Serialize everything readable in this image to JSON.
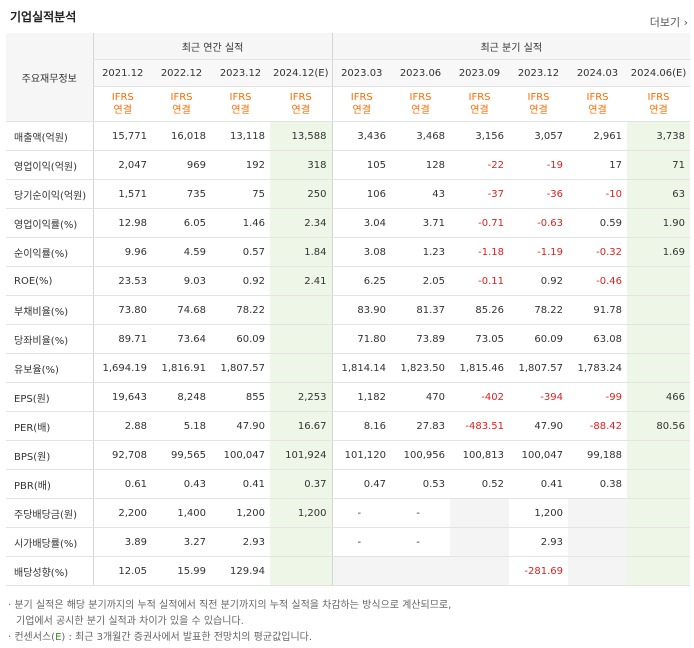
{
  "header": {
    "title": "기업실적분석",
    "more_label": "더보기"
  },
  "table": {
    "row_header": "주요재무정보",
    "group_annual": "최근 연간 실적",
    "group_quarterly": "최근 분기 실적",
    "annual_periods": [
      "2021.12",
      "2022.12",
      "2023.12",
      "2024.12(E)"
    ],
    "quarterly_periods": [
      "2023.03",
      "2023.06",
      "2023.09",
      "2023.12",
      "2024.03",
      "2024.06(E)"
    ],
    "ifrs_top": "IFRS",
    "ifrs_bottom": "연결",
    "rows": [
      {
        "label": "매출액(억원)",
        "values": [
          "15,771",
          "16,018",
          "13,118",
          "13,588",
          "3,436",
          "3,468",
          "3,156",
          "3,057",
          "2,961",
          "3,738"
        ]
      },
      {
        "label": "영업이익(억원)",
        "values": [
          "2,047",
          "969",
          "192",
          "318",
          "105",
          "128",
          "-22",
          "-19",
          "17",
          "71"
        ]
      },
      {
        "label": "당기순이익(억원)",
        "values": [
          "1,571",
          "735",
          "75",
          "250",
          "106",
          "43",
          "-37",
          "-36",
          "-10",
          "63"
        ]
      },
      {
        "label": "영업이익률(%)",
        "values": [
          "12.98",
          "6.05",
          "1.46",
          "2.34",
          "3.04",
          "3.71",
          "-0.71",
          "-0.63",
          "0.59",
          "1.90"
        ]
      },
      {
        "label": "순이익률(%)",
        "values": [
          "9.96",
          "4.59",
          "0.57",
          "1.84",
          "3.08",
          "1.23",
          "-1.18",
          "-1.19",
          "-0.32",
          "1.69"
        ]
      },
      {
        "label": "ROE(%)",
        "values": [
          "23.53",
          "9.03",
          "0.92",
          "2.41",
          "6.25",
          "2.05",
          "-0.11",
          "0.92",
          "-0.46",
          ""
        ]
      },
      {
        "label": "부채비율(%)",
        "values": [
          "73.80",
          "74.68",
          "78.22",
          "",
          "83.90",
          "81.37",
          "85.26",
          "78.22",
          "91.78",
          ""
        ]
      },
      {
        "label": "당좌비율(%)",
        "values": [
          "89.71",
          "73.64",
          "60.09",
          "",
          "71.80",
          "73.89",
          "73.05",
          "60.09",
          "63.08",
          ""
        ]
      },
      {
        "label": "유보율(%)",
        "values": [
          "1,694.19",
          "1,816.91",
          "1,807.57",
          "",
          "1,814.14",
          "1,823.50",
          "1,815.46",
          "1,807.57",
          "1,783.24",
          ""
        ]
      },
      {
        "label": "EPS(원)",
        "values": [
          "19,643",
          "8,248",
          "855",
          "2,253",
          "1,182",
          "470",
          "-402",
          "-394",
          "-99",
          "466"
        ]
      },
      {
        "label": "PER(배)",
        "values": [
          "2.88",
          "5.18",
          "47.90",
          "16.67",
          "8.16",
          "27.83",
          "-483.51",
          "47.90",
          "-88.42",
          "80.56"
        ]
      },
      {
        "label": "BPS(원)",
        "values": [
          "92,708",
          "99,565",
          "100,047",
          "101,924",
          "101,120",
          "100,956",
          "100,813",
          "100,047",
          "99,188",
          ""
        ]
      },
      {
        "label": "PBR(배)",
        "values": [
          "0.61",
          "0.43",
          "0.41",
          "0.37",
          "0.47",
          "0.53",
          "0.52",
          "0.41",
          "0.38",
          ""
        ]
      },
      {
        "label": "주당배당금(원)",
        "values": [
          "2,200",
          "1,400",
          "1,200",
          "1,200",
          "-",
          "-",
          "",
          "1,200",
          "",
          ""
        ]
      },
      {
        "label": "시가배당률(%)",
        "values": [
          "3.89",
          "3.27",
          "2.93",
          "",
          "-",
          "-",
          "",
          "2.93",
          "",
          ""
        ]
      },
      {
        "label": "배당성향(%)",
        "values": [
          "12.05",
          "15.99",
          "129.94",
          "",
          "",
          "",
          "",
          "-281.69",
          "",
          ""
        ]
      }
    ]
  },
  "notes": {
    "line1": "· 분기 실적은 해당 분기까지의 누적 실적에서 직전 분기까지의 누적 실적을 차감하는 방식으로 계산되므로,",
    "line2": "기업에서 공시한 분기 실적과 차이가 있을 수 있습니다.",
    "line3_prefix": "· 컨센서스(",
    "line3_e": "E",
    "line3_suffix": ") : 최근 3개월간 증권사에서 발표한 전망치의 평균값입니다."
  }
}
